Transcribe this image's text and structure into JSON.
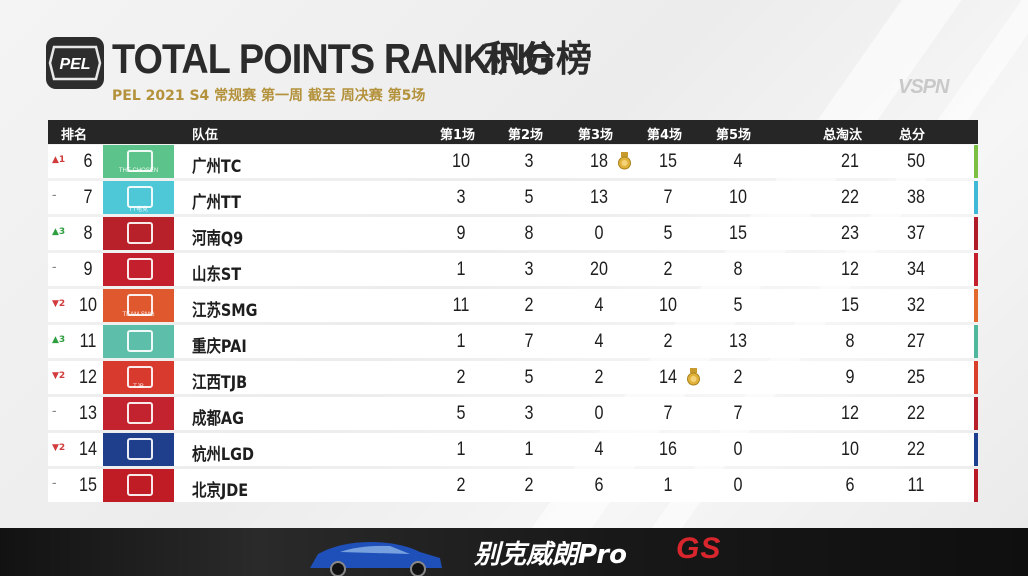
{
  "header": {
    "logo_text": "PEL",
    "title_en": "TOTAL POINTS RANKING",
    "title_cn": "积分榜",
    "subtitle": "PEL 2021 S4 常规赛 第一周 截至 周决赛 第5场",
    "watermark": "VSPN"
  },
  "columns": {
    "rank": "排名",
    "team": "队伍",
    "m1": "第1场",
    "m2": "第2场",
    "m3": "第3场",
    "m4": "第4场",
    "m5": "第5场",
    "kills": "总淘汰",
    "total": "总分"
  },
  "rows": [
    {
      "change": "▲1",
      "dir": "up-red",
      "rank": "6",
      "team": "广州TC",
      "logo_label": "THE CHOSEN",
      "m1": "10",
      "m2": "3",
      "m3": "18",
      "m4": "15",
      "m5": "4",
      "kills": "21",
      "total": "50",
      "logo_color": "#5cc48a",
      "edge_color": "#7bc043",
      "medal": "m3"
    },
    {
      "change": "–",
      "dir": "same",
      "rank": "7",
      "team": "广州TT",
      "logo_label": "TT电竞",
      "m1": "3",
      "m2": "5",
      "m3": "13",
      "m4": "7",
      "m5": "10",
      "kills": "22",
      "total": "38",
      "logo_color": "#4ec7d6",
      "edge_color": "#3fb8d8",
      "medal": ""
    },
    {
      "change": "▲3",
      "dir": "up",
      "rank": "8",
      "team": "河南Q9",
      "logo_label": "",
      "m1": "9",
      "m2": "8",
      "m3": "0",
      "m4": "5",
      "m5": "15",
      "kills": "23",
      "total": "37",
      "logo_color": "#b8202a",
      "edge_color": "#b01c28",
      "medal": ""
    },
    {
      "change": "–",
      "dir": "same",
      "rank": "9",
      "team": "山东ST",
      "logo_label": "",
      "m1": "1",
      "m2": "3",
      "m3": "20",
      "m4": "2",
      "m5": "8",
      "kills": "12",
      "total": "34",
      "logo_color": "#c41f2d",
      "edge_color": "#c41f2d",
      "medal": ""
    },
    {
      "change": "▼2",
      "dir": "down",
      "rank": "10",
      "team": "江苏SMG",
      "logo_label": "TEAM SMG",
      "m1": "11",
      "m2": "2",
      "m3": "4",
      "m4": "10",
      "m5": "5",
      "kills": "15",
      "total": "32",
      "logo_color": "#e0582e",
      "edge_color": "#e26a2c",
      "medal": ""
    },
    {
      "change": "▲3",
      "dir": "up",
      "rank": "11",
      "team": "重庆PAI",
      "logo_label": "",
      "m1": "1",
      "m2": "7",
      "m3": "4",
      "m4": "2",
      "m5": "13",
      "kills": "8",
      "total": "27",
      "logo_color": "#5dbfa9",
      "edge_color": "#4fb89c",
      "medal": ""
    },
    {
      "change": "▼2",
      "dir": "down",
      "rank": "12",
      "team": "江西TJB",
      "logo_label": "TJB",
      "m1": "2",
      "m2": "5",
      "m3": "2",
      "m4": "14",
      "m5": "2",
      "kills": "9",
      "total": "25",
      "logo_color": "#d83a2e",
      "edge_color": "#d8402c",
      "medal": "m4"
    },
    {
      "change": "–",
      "dir": "same",
      "rank": "13",
      "team": "成都AG",
      "logo_label": "",
      "m1": "5",
      "m2": "3",
      "m3": "0",
      "m4": "7",
      "m5": "7",
      "kills": "12",
      "total": "22",
      "logo_color": "#c3232e",
      "edge_color": "#b71f2b",
      "medal": ""
    },
    {
      "change": "▼2",
      "dir": "down",
      "rank": "14",
      "team": "杭州LGD",
      "logo_label": "",
      "m1": "1",
      "m2": "1",
      "m3": "4",
      "m4": "16",
      "m5": "0",
      "kills": "10",
      "total": "22",
      "logo_color": "#1f3f8c",
      "edge_color": "#1e3f8f",
      "medal": ""
    },
    {
      "change": "–",
      "dir": "same",
      "rank": "15",
      "team": "北京JDE",
      "logo_label": "",
      "m1": "2",
      "m2": "2",
      "m3": "6",
      "m4": "1",
      "m5": "0",
      "kills": "6",
      "total": "11",
      "logo_color": "#c01c26",
      "edge_color": "#b81b26",
      "medal": ""
    }
  ],
  "ad": {
    "text": "别克威朗Pro",
    "brand": "GS"
  }
}
